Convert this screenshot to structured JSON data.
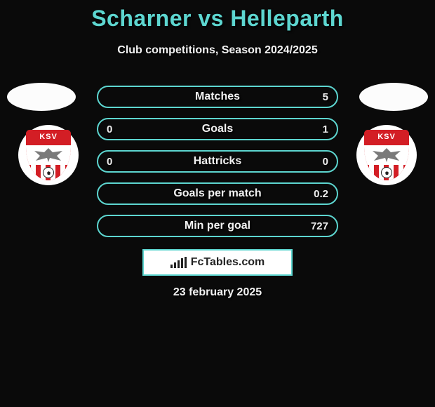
{
  "title": "Scharner vs Helleparth",
  "subtitle": "Club competitions, Season 2024/2025",
  "club_badge_text": "KSV",
  "rows": [
    {
      "label": "Matches",
      "left": "",
      "right": "5"
    },
    {
      "label": "Goals",
      "left": "0",
      "right": "1"
    },
    {
      "label": "Hattricks",
      "left": "0",
      "right": "0"
    },
    {
      "label": "Goals per match",
      "left": "",
      "right": "0.2"
    },
    {
      "label": "Min per goal",
      "left": "",
      "right": "727"
    }
  ],
  "brand": "FcTables.com",
  "date": "23 february 2025",
  "colors": {
    "accent": "#5dd6d0",
    "bg": "#0a0a0a",
    "club_red": "#d31e25"
  }
}
